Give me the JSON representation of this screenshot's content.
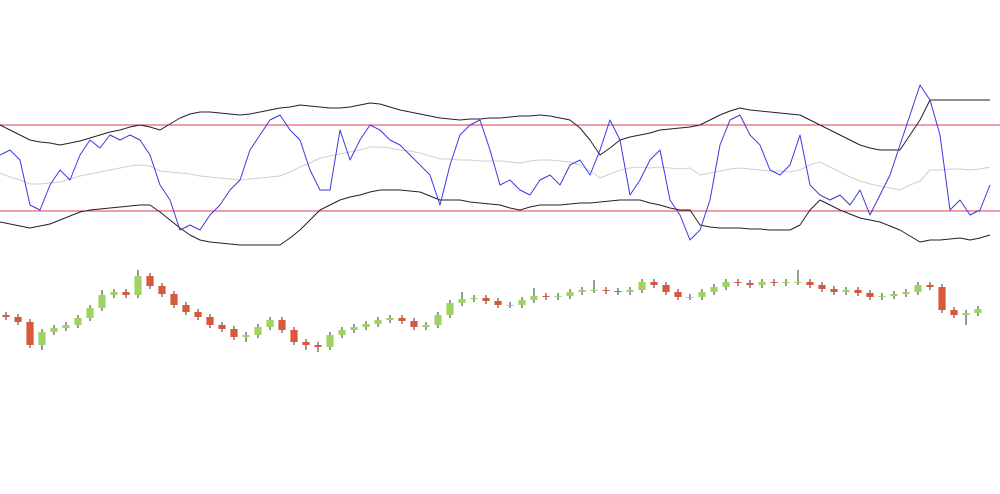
{
  "chart_data": [
    {
      "type": "line",
      "x": [
        0,
        1,
        2,
        3,
        4,
        5,
        6,
        7,
        8,
        9,
        10,
        11,
        12,
        13,
        14,
        15,
        16,
        17,
        18,
        19,
        20,
        21,
        22,
        23,
        24,
        25,
        26,
        27,
        28,
        29,
        30,
        31,
        32,
        33,
        34,
        35,
        36,
        37,
        38,
        39,
        40,
        41,
        42,
        43,
        44,
        45,
        46,
        47,
        48,
        49,
        50,
        51,
        52,
        53,
        54,
        55,
        56,
        57,
        58,
        59,
        60,
        61,
        62,
        63,
        64,
        65,
        66,
        67,
        68,
        69,
        70,
        71,
        72,
        73,
        74,
        75,
        76,
        77,
        78,
        79,
        80,
        81,
        82,
        83,
        84,
        85,
        86,
        87,
        88,
        89,
        90,
        91,
        92,
        93,
        94,
        95,
        96,
        97,
        98,
        99
      ],
      "xlim": [
        0,
        99.5
      ],
      "ylim": [
        25,
        240
      ],
      "levels": [
        175,
        89
      ],
      "level_color": "#e8384f",
      "series": [
        {
          "color": "#cfcfcf",
          "values": [
            127,
            123,
            120,
            116,
            116,
            117,
            118,
            121,
            124,
            126,
            128,
            130,
            132,
            134,
            135,
            134,
            129,
            128,
            127,
            126,
            124,
            123,
            122,
            121,
            120,
            121,
            122,
            123,
            124,
            128,
            133,
            137,
            142,
            144,
            146,
            148,
            150,
            153,
            153,
            152,
            150,
            149,
            147,
            144,
            141,
            141,
            140,
            140,
            139,
            139,
            139,
            138,
            137,
            139,
            140,
            140,
            139,
            138,
            135,
            129,
            122,
            126,
            130,
            132,
            133,
            132,
            133,
            132,
            131,
            132,
            125,
            127,
            129,
            131,
            132,
            131,
            130,
            129,
            129,
            128,
            130,
            135,
            138,
            133,
            128,
            123,
            119,
            116,
            114,
            112,
            110,
            115,
            119,
            130,
            130,
            131,
            131,
            130,
            131,
            133
          ]
        },
        {
          "color": "#222222",
          "values": [
            175,
            170,
            165,
            160,
            158,
            157,
            155,
            157,
            159,
            162,
            165,
            168,
            170,
            173,
            175,
            173,
            170,
            176,
            182,
            186,
            188,
            188,
            187,
            186,
            185,
            186,
            188,
            190,
            192,
            193,
            195,
            194,
            193,
            192,
            192,
            193,
            195,
            197,
            196,
            193,
            190,
            188,
            186,
            184,
            182,
            181,
            180,
            181,
            181,
            182,
            182,
            183,
            184,
            184,
            185,
            184,
            182,
            180,
            172,
            160,
            145,
            152,
            160,
            163,
            165,
            167,
            170,
            171,
            172,
            173,
            175,
            180,
            185,
            189,
            192,
            190,
            189,
            188,
            187,
            186,
            185,
            180,
            175,
            170,
            165,
            160,
            155,
            152,
            150,
            150,
            150,
            165,
            180,
            200,
            200,
            200,
            200,
            200,
            200,
            200
          ]
        },
        {
          "color": "#222222",
          "values": [
            78,
            76,
            74,
            72,
            74,
            76,
            80,
            84,
            88,
            90,
            91,
            92,
            93,
            94,
            95,
            95,
            88,
            80,
            72,
            65,
            60,
            58,
            57,
            56,
            55,
            55,
            55,
            55,
            55,
            62,
            70,
            80,
            90,
            95,
            100,
            103,
            105,
            108,
            110,
            110,
            110,
            109,
            108,
            104,
            100,
            100,
            100,
            98,
            97,
            96,
            95,
            92,
            90,
            93,
            95,
            95,
            95,
            96,
            97,
            97,
            98,
            99,
            100,
            100,
            100,
            97,
            95,
            92,
            90,
            90,
            75,
            73,
            72,
            72,
            72,
            71,
            71,
            70,
            70,
            70,
            75,
            90,
            100,
            95,
            90,
            86,
            82,
            80,
            78,
            74,
            70,
            64,
            58,
            60,
            60,
            61,
            62,
            60,
            62,
            65
          ]
        },
        {
          "color": "#3a3ae0",
          "values": [
            145,
            150,
            140,
            95,
            90,
            115,
            130,
            120,
            145,
            160,
            152,
            165,
            160,
            165,
            160,
            145,
            115,
            100,
            70,
            75,
            70,
            85,
            95,
            110,
            120,
            150,
            165,
            180,
            185,
            170,
            160,
            130,
            110,
            110,
            170,
            140,
            160,
            175,
            170,
            160,
            155,
            145,
            135,
            125,
            95,
            135,
            165,
            175,
            180,
            150,
            115,
            120,
            110,
            105,
            120,
            125,
            115,
            135,
            140,
            125,
            150,
            180,
            160,
            105,
            120,
            140,
            150,
            100,
            85,
            60,
            70,
            100,
            155,
            180,
            185,
            165,
            155,
            130,
            125,
            135,
            165,
            115,
            105,
            100,
            105,
            95,
            110,
            85,
            105,
            125,
            155,
            185,
            215,
            200,
            165,
            90,
            100,
            85,
            90,
            115
          ]
        }
      ]
    },
    {
      "type": "candlestick",
      "x": [
        0,
        1,
        2,
        3,
        4,
        5,
        6,
        7,
        8,
        9,
        10,
        11,
        12,
        13,
        14,
        15,
        16,
        17,
        18,
        19,
        20,
        21,
        22,
        23,
        24,
        25,
        26,
        27,
        28,
        29,
        30,
        31,
        32,
        33,
        34,
        35,
        36,
        37,
        38,
        39,
        40,
        41,
        42,
        43,
        44,
        45,
        46,
        47,
        48,
        49,
        50,
        51,
        52,
        53,
        54,
        55,
        56,
        57,
        58,
        59,
        60,
        61,
        62,
        63,
        64,
        65,
        66,
        67,
        68,
        69,
        70,
        71,
        72,
        73,
        74,
        75,
        76,
        77,
        78,
        79,
        80,
        81
      ],
      "xlim": [
        -0.5,
        82.5
      ],
      "ylim": [
        130,
        240
      ],
      "up_color": "#9fd364",
      "down_color": "#d9573a",
      "wick_color": "#333333",
      "open": [
        185,
        183,
        178,
        155,
        168,
        172,
        175,
        182,
        192,
        205,
        208,
        205,
        224,
        214,
        206,
        195,
        188,
        183,
        175,
        171,
        163,
        165,
        173,
        180,
        170,
        158,
        155,
        153,
        165,
        170,
        173,
        176,
        180,
        182,
        179,
        173,
        175,
        185,
        197,
        201,
        202,
        199,
        195,
        195,
        200,
        204,
        203,
        204,
        208,
        210,
        210,
        209,
        208,
        210,
        218,
        215,
        208,
        203,
        203,
        208,
        213,
        218,
        217,
        215,
        218,
        217,
        218,
        218,
        215,
        211,
        208,
        210,
        207,
        203,
        204,
        206,
        208,
        215,
        213,
        190,
        185,
        187
      ],
      "high": [
        188,
        186,
        181,
        171,
        175,
        178,
        185,
        195,
        210,
        211,
        211,
        230,
        227,
        217,
        209,
        198,
        191,
        186,
        178,
        174,
        168,
        176,
        183,
        183,
        173,
        161,
        158,
        168,
        173,
        176,
        179,
        183,
        185,
        185,
        182,
        178,
        188,
        200,
        208,
        205,
        205,
        202,
        198,
        203,
        212,
        207,
        207,
        211,
        213,
        220,
        213,
        212,
        213,
        221,
        221,
        218,
        211,
        206,
        211,
        216,
        221,
        221,
        220,
        221,
        221,
        221,
        230,
        221,
        218,
        214,
        213,
        213,
        210,
        207,
        209,
        211,
        218,
        218,
        216,
        193,
        190,
        194
      ],
      "low": [
        180,
        175,
        152,
        150,
        165,
        169,
        172,
        179,
        189,
        202,
        202,
        202,
        211,
        203,
        192,
        185,
        180,
        172,
        168,
        160,
        158,
        162,
        170,
        167,
        155,
        150,
        148,
        150,
        162,
        167,
        170,
        173,
        177,
        176,
        170,
        170,
        172,
        182,
        194,
        198,
        196,
        192,
        192,
        192,
        197,
        200,
        200,
        201,
        205,
        207,
        206,
        205,
        205,
        207,
        212,
        205,
        200,
        200,
        200,
        205,
        210,
        214,
        212,
        212,
        214,
        214,
        215,
        212,
        208,
        205,
        205,
        204,
        200,
        200,
        201,
        203,
        205,
        210,
        187,
        182,
        175,
        184
      ],
      "close": [
        183,
        178,
        155,
        168,
        172,
        175,
        182,
        192,
        205,
        208,
        205,
        224,
        214,
        206,
        195,
        188,
        183,
        175,
        171,
        163,
        165,
        173,
        180,
        170,
        158,
        155,
        153,
        165,
        170,
        173,
        176,
        180,
        182,
        179,
        173,
        175,
        185,
        197,
        201,
        202,
        199,
        195,
        195,
        200,
        204,
        203,
        204,
        208,
        210,
        210,
        209,
        208,
        210,
        218,
        215,
        208,
        203,
        203,
        208,
        213,
        218,
        217,
        215,
        218,
        217,
        218,
        218,
        215,
        211,
        208,
        210,
        207,
        203,
        204,
        206,
        208,
        215,
        213,
        190,
        185,
        187,
        191
      ]
    }
  ]
}
